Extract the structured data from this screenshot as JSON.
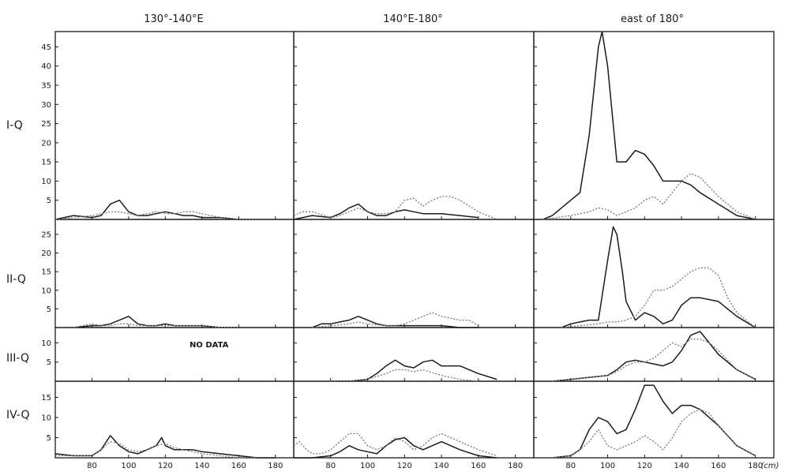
{
  "chart_data": {
    "type": "line",
    "columns": [
      "130°-140°E",
      "140°E-180°",
      "east of 180°"
    ],
    "rows": [
      {
        "label": "I-Q",
        "ylim": [
          0,
          49
        ],
        "yticks": [
          5,
          10,
          15,
          20,
          25,
          30,
          35,
          40,
          45
        ]
      },
      {
        "label": "II-Q",
        "ylim": [
          0,
          29
        ],
        "yticks": [
          5,
          10,
          15,
          20,
          25
        ]
      },
      {
        "label": "III-Q",
        "ylim": [
          0,
          14
        ],
        "yticks": [
          5,
          10
        ]
      },
      {
        "label": "IV-Q",
        "ylim": [
          0,
          19
        ],
        "yticks": [
          5,
          10,
          15
        ]
      }
    ],
    "xlim": [
      60,
      190
    ],
    "xticks": [
      80,
      100,
      120,
      140,
      160,
      180
    ],
    "xunit": "(cm)",
    "nodata_label": "NO DATA",
    "panels": [
      {
        "row": 0,
        "col": 0,
        "series": [
          {
            "style": "solid",
            "x": [
              60,
              70,
              80,
              85,
              90,
              95,
              100,
              105,
              110,
              115,
              120,
              125,
              130,
              135,
              140,
              150,
              160,
              170
            ],
            "y": [
              0,
              1,
              0.5,
              1,
              4,
              5,
              2,
              1,
              1,
              1.5,
              2,
              1.5,
              1,
              1,
              0.5,
              0.5,
              0,
              0
            ]
          },
          {
            "style": "dotted",
            "x": [
              60,
              70,
              80,
              85,
              90,
              95,
              100,
              105,
              110,
              115,
              120,
              125,
              130,
              135,
              140,
              150,
              160,
              170
            ],
            "y": [
              0,
              0.5,
              1,
              1.5,
              2,
              2,
              1.5,
              1,
              1.5,
              2,
              1.5,
              1.5,
              2,
              2,
              1.5,
              0.5,
              0,
              0
            ]
          }
        ]
      },
      {
        "row": 0,
        "col": 1,
        "series": [
          {
            "style": "solid",
            "x": [
              60,
              70,
              80,
              85,
              90,
              95,
              100,
              105,
              110,
              115,
              120,
              125,
              130,
              140,
              150,
              160
            ],
            "y": [
              0,
              1,
              0.5,
              1.5,
              3,
              4,
              2,
              1,
              1,
              2,
              2.5,
              2,
              1.5,
              1.5,
              1,
              0.5
            ]
          },
          {
            "style": "dotted",
            "x": [
              60,
              65,
              70,
              80,
              85,
              90,
              95,
              100,
              105,
              110,
              115,
              120,
              125,
              130,
              135,
              140,
              145,
              150,
              160,
              170
            ],
            "y": [
              1,
              2,
              2,
              0.5,
              1,
              2,
              3,
              2,
              1.5,
              1.5,
              2,
              5,
              5.5,
              3.5,
              5,
              6,
              6,
              5,
              2,
              0
            ]
          }
        ]
      },
      {
        "row": 0,
        "col": 2,
        "series": [
          {
            "style": "solid",
            "x": [
              65,
              70,
              75,
              80,
              85,
              90,
              95,
              97,
              100,
              105,
              110,
              115,
              120,
              125,
              130,
              140,
              145,
              150,
              160,
              170,
              180
            ],
            "y": [
              0,
              1,
              3,
              5,
              7,
              22,
              45,
              49,
              40,
              15,
              15,
              18,
              17,
              14,
              10,
              10,
              9,
              7,
              4,
              1,
              0
            ]
          },
          {
            "style": "dotted",
            "x": [
              65,
              80,
              90,
              95,
              100,
              105,
              110,
              115,
              120,
              125,
              130,
              135,
              140,
              145,
              150,
              160,
              170,
              180
            ],
            "y": [
              0,
              1,
              2,
              3,
              2.5,
              1,
              2,
              3,
              5,
              6,
              4,
              7,
              10,
              12,
              11,
              6,
              2,
              0
            ]
          }
        ]
      },
      {
        "row": 1,
        "col": 0,
        "series": [
          {
            "style": "solid",
            "x": [
              70,
              80,
              85,
              90,
              95,
              100,
              105,
              110,
              115,
              120,
              125,
              130,
              140,
              150,
              160
            ],
            "y": [
              0,
              0.5,
              0.5,
              1,
              2,
              3,
              1,
              0.5,
              0.5,
              1,
              0.5,
              0.5,
              0.5,
              0,
              0
            ]
          },
          {
            "style": "dotted",
            "x": [
              70,
              80,
              85,
              90,
              95,
              100,
              105,
              110,
              115,
              120,
              125,
              130,
              140,
              150,
              160
            ],
            "y": [
              0,
              1,
              0.5,
              0.5,
              1,
              1,
              0.5,
              0.5,
              0.5,
              0.5,
              0.5,
              0.5,
              0.5,
              0,
              0
            ]
          }
        ]
      },
      {
        "row": 1,
        "col": 1,
        "series": [
          {
            "style": "solid",
            "x": [
              70,
              75,
              80,
              85,
              90,
              95,
              100,
              105,
              110,
              115,
              120,
              130,
              140,
              150,
              160
            ],
            "y": [
              0,
              1,
              1,
              1.5,
              2,
              3,
              2,
              1,
              0.5,
              0.5,
              0.5,
              0.5,
              0.5,
              0,
              0
            ]
          },
          {
            "style": "dotted",
            "x": [
              70,
              80,
              90,
              95,
              100,
              110,
              115,
              120,
              125,
              130,
              135,
              140,
              145,
              150,
              155,
              160
            ],
            "y": [
              0,
              0.5,
              1,
              1.5,
              1,
              0.5,
              0.5,
              1,
              2,
              3,
              4,
              3,
              2.5,
              2,
              2,
              0.5
            ]
          }
        ]
      },
      {
        "row": 1,
        "col": 2,
        "series": [
          {
            "style": "solid",
            "x": [
              75,
              80,
              85,
              90,
              95,
              100,
              103,
              105,
              108,
              110,
              115,
              120,
              125,
              130,
              135,
              140,
              145,
              150,
              160,
              170,
              180
            ],
            "y": [
              0,
              1,
              1.5,
              2,
              2,
              18,
              27,
              25,
              15,
              7,
              2,
              4,
              3,
              1,
              2,
              6,
              8,
              8,
              7,
              3,
              0
            ]
          },
          {
            "style": "dotted",
            "x": [
              75,
              85,
              95,
              100,
              105,
              110,
              115,
              120,
              125,
              130,
              135,
              140,
              145,
              150,
              155,
              160,
              165,
              170,
              180
            ],
            "y": [
              0,
              0.5,
              1,
              1.5,
              1.5,
              2,
              3,
              6,
              10,
              10,
              11,
              13,
              15,
              16,
              16,
              14,
              8,
              4,
              0
            ]
          }
        ]
      },
      {
        "row": 2,
        "col": 1,
        "series": [
          {
            "style": "solid",
            "x": [
              80,
              90,
              100,
              105,
              110,
              115,
              120,
              125,
              130,
              135,
              140,
              145,
              150,
              160,
              170
            ],
            "y": [
              0,
              0,
              0.5,
              2,
              4,
              5.5,
              4,
              3.5,
              5,
              5.5,
              4,
              4,
              4,
              2,
              0.5
            ]
          },
          {
            "style": "dotted",
            "x": [
              80,
              90,
              100,
              110,
              115,
              120,
              125,
              130,
              140,
              150,
              160
            ],
            "y": [
              0,
              0,
              0.5,
              2,
              3,
              3,
              2.5,
              3,
              1.5,
              0.5,
              0
            ]
          }
        ]
      },
      {
        "row": 2,
        "col": 2,
        "series": [
          {
            "style": "solid",
            "x": [
              70,
              80,
              90,
              100,
              105,
              110,
              115,
              120,
              125,
              130,
              135,
              140,
              145,
              150,
              155,
              160,
              170,
              180
            ],
            "y": [
              0,
              0.5,
              1,
              1.5,
              3,
              5,
              5.5,
              5,
              4.5,
              4,
              5,
              8,
              12,
              13,
              10,
              7,
              3,
              0.5
            ]
          },
          {
            "style": "dotted",
            "x": [
              70,
              80,
              90,
              100,
              105,
              110,
              115,
              120,
              125,
              130,
              135,
              140,
              145,
              150,
              155,
              160,
              170,
              180
            ],
            "y": [
              0,
              0.5,
              1,
              1.5,
              2.5,
              4,
              5,
              5,
              6,
              8,
              10,
              9,
              11,
              11,
              10,
              8,
              3,
              0.5
            ]
          }
        ]
      },
      {
        "row": 3,
        "col": 0,
        "series": [
          {
            "style": "solid",
            "x": [
              60,
              70,
              80,
              85,
              90,
              95,
              100,
              105,
              110,
              115,
              118,
              120,
              125,
              130,
              135,
              140,
              150,
              160,
              170,
              180
            ],
            "y": [
              1,
              0.5,
              0.5,
              2,
              5.5,
              3,
              1.5,
              1,
              2,
              3,
              5,
              3,
              2,
              2,
              2,
              1.5,
              1,
              0.5,
              0,
              0
            ]
          },
          {
            "style": "dotted",
            "x": [
              60,
              70,
              80,
              85,
              90,
              95,
              100,
              105,
              110,
              115,
              120,
              125,
              130,
              140,
              150,
              160,
              170
            ],
            "y": [
              0.5,
              0.5,
              0.5,
              2,
              4,
              3.5,
              2,
              1.5,
              2,
              3,
              3.5,
              2.5,
              2,
              1,
              0.5,
              0,
              0
            ]
          }
        ]
      },
      {
        "row": 3,
        "col": 1,
        "series": [
          {
            "style": "solid",
            "x": [
              60,
              70,
              80,
              85,
              90,
              95,
              100,
              105,
              110,
              115,
              120,
              125,
              130,
              135,
              140,
              145,
              150,
              160,
              170
            ],
            "y": [
              0,
              0,
              0.5,
              1.5,
              3,
              2,
              1.5,
              1,
              3,
              4.5,
              5,
              3,
              2,
              3,
              4,
              3,
              2,
              0.5,
              0
            ]
          },
          {
            "style": "dotted",
            "x": [
              60,
              63,
              67,
              70,
              75,
              80,
              85,
              90,
              95,
              100,
              105,
              110,
              115,
              120,
              125,
              130,
              135,
              140,
              145,
              150,
              160,
              170
            ],
            "y": [
              3,
              4,
              2,
              1,
              1,
              2,
              4,
              6,
              6,
              3,
              2,
              3,
              5,
              4,
              2,
              3,
              5,
              6,
              5,
              4,
              2,
              0.5
            ]
          }
        ]
      },
      {
        "row": 3,
        "col": 2,
        "series": [
          {
            "style": "solid",
            "x": [
              70,
              80,
              85,
              90,
              95,
              100,
              105,
              110,
              115,
              120,
              125,
              130,
              135,
              140,
              145,
              150,
              155,
              160,
              170,
              180
            ],
            "y": [
              0,
              0.5,
              2,
              7,
              10,
              9,
              6,
              7,
              12,
              18,
              18,
              14,
              11,
              13,
              13,
              12,
              10,
              8,
              3,
              0.5
            ]
          },
          {
            "style": "dotted",
            "x": [
              70,
              80,
              85,
              90,
              95,
              100,
              105,
              110,
              115,
              120,
              125,
              130,
              135,
              140,
              145,
              150,
              155,
              160,
              170,
              180
            ],
            "y": [
              0,
              0.5,
              2,
              4,
              7,
              3,
              2,
              3,
              4,
              5.5,
              4,
              2,
              5,
              9,
              11,
              12,
              11,
              8,
              3,
              0.5
            ]
          }
        ]
      }
    ]
  }
}
